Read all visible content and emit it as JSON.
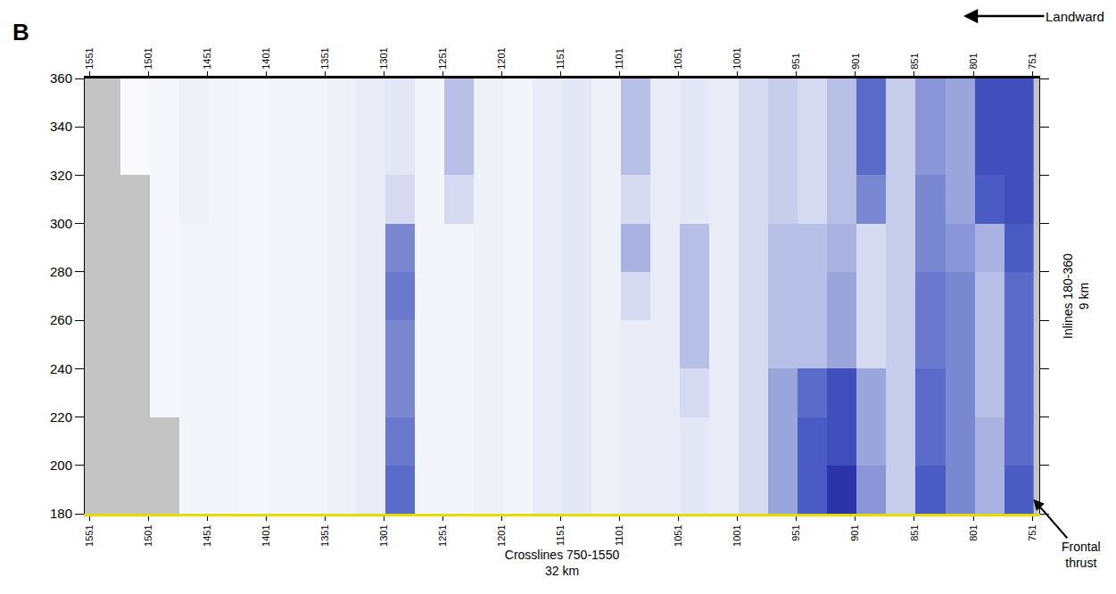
{
  "chart_data": {
    "type": "heatmap",
    "panel": "B",
    "x_label": [
      "Crosslines 750-1550",
      "32 km"
    ],
    "y_label": [
      "Inlines 180-360",
      "9 km"
    ],
    "x": [
      762.5,
      787.5,
      812.5,
      837.5,
      862.5,
      887.5,
      912.5,
      937.5,
      962.5,
      987.5,
      1012.5,
      1037.5,
      1062.5,
      1087.5,
      1112.5,
      1137.5,
      1162.5,
      1187.5,
      1212.5,
      1237.5,
      1262.5,
      1287.5,
      1312.5,
      1337.5,
      1362.5,
      1387.5,
      1412.5,
      1437.5,
      1462.5,
      1487.5,
      1512.5,
      1537.5
    ],
    "y": [
      190,
      210,
      230,
      250,
      270,
      290,
      310,
      330,
      350
    ],
    "cells": [
      [
        0.75,
        0.45,
        0.6,
        0.75,
        0.35,
        0.55,
        0.9,
        0.75,
        0.5,
        0.3,
        0.2,
        0.25,
        0.2,
        0.2,
        0.15,
        0.25,
        0.2,
        0.1,
        0.15,
        0.1,
        0.1,
        0.7,
        0.2,
        0.15,
        0.1,
        0.1,
        0.08,
        0.1,
        0.1,
        null,
        null,
        null
      ],
      [
        0.7,
        0.45,
        0.6,
        0.7,
        0.35,
        0.5,
        0.8,
        0.75,
        0.5,
        0.3,
        0.2,
        0.25,
        0.2,
        0.2,
        0.15,
        0.25,
        0.2,
        0.1,
        0.15,
        0.1,
        0.1,
        0.65,
        0.2,
        0.15,
        0.1,
        0.1,
        0.08,
        0.1,
        0.1,
        null,
        null,
        null
      ],
      [
        0.7,
        0.4,
        0.6,
        0.7,
        0.35,
        0.5,
        0.8,
        0.7,
        0.5,
        0.3,
        0.2,
        0.3,
        0.2,
        0.2,
        0.15,
        0.25,
        0.2,
        0.1,
        0.15,
        0.1,
        0.1,
        0.6,
        0.2,
        0.15,
        0.1,
        0.1,
        0.08,
        0.1,
        0.1,
        0.08,
        null,
        null
      ],
      [
        0.7,
        0.4,
        0.6,
        0.65,
        0.35,
        0.3,
        0.5,
        0.4,
        0.4,
        0.3,
        0.2,
        0.4,
        0.2,
        0.2,
        0.15,
        0.25,
        0.2,
        0.1,
        0.15,
        0.1,
        0.1,
        0.6,
        0.2,
        0.15,
        0.1,
        0.1,
        0.08,
        0.1,
        0.1,
        0.08,
        null,
        null
      ],
      [
        0.7,
        0.4,
        0.6,
        0.65,
        0.35,
        0.3,
        0.5,
        0.4,
        0.4,
        0.3,
        0.2,
        0.4,
        0.2,
        0.3,
        0.15,
        0.25,
        0.2,
        0.1,
        0.15,
        0.1,
        0.1,
        0.65,
        0.2,
        0.15,
        0.1,
        0.1,
        0.08,
        0.1,
        0.1,
        0.08,
        null,
        null
      ],
      [
        0.75,
        0.45,
        0.55,
        0.6,
        0.35,
        0.3,
        0.45,
        0.4,
        0.4,
        0.3,
        0.2,
        0.4,
        0.2,
        0.45,
        0.15,
        0.25,
        0.2,
        0.1,
        0.15,
        0.1,
        0.1,
        0.6,
        0.2,
        0.15,
        0.1,
        0.1,
        0.08,
        0.1,
        0.1,
        0.08,
        null,
        null
      ],
      [
        0.8,
        0.75,
        0.5,
        0.6,
        0.35,
        0.6,
        0.4,
        0.3,
        0.35,
        0.3,
        0.2,
        0.25,
        0.2,
        0.3,
        0.15,
        0.25,
        0.2,
        0.1,
        0.15,
        0.3,
        0.1,
        0.3,
        0.2,
        0.15,
        0.1,
        0.1,
        0.08,
        0.1,
        0.15,
        0.08,
        null,
        null
      ],
      [
        0.8,
        0.8,
        0.5,
        0.55,
        0.35,
        0.7,
        0.4,
        0.3,
        0.35,
        0.3,
        0.2,
        0.25,
        0.2,
        0.4,
        0.15,
        0.25,
        0.2,
        0.1,
        0.15,
        0.4,
        0.1,
        0.25,
        0.2,
        0.15,
        0.1,
        0.1,
        0.08,
        0.1,
        0.15,
        0.08,
        0.05,
        null
      ],
      [
        0.8,
        0.8,
        0.5,
        0.55,
        0.35,
        0.7,
        0.4,
        0.3,
        0.35,
        0.3,
        0.2,
        0.25,
        0.2,
        0.4,
        0.15,
        0.25,
        0.2,
        0.1,
        0.15,
        0.4,
        0.1,
        0.25,
        0.2,
        0.15,
        0.1,
        0.1,
        0.08,
        0.1,
        0.15,
        0.08,
        0.05,
        null
      ]
    ],
    "zlim": [
      0,
      1
    ],
    "xlim": [
      1555,
      745
    ],
    "ylim": [
      180,
      360
    ],
    "xticks": [
      1551,
      1501,
      1451,
      1401,
      1351,
      1301,
      1251,
      1201,
      1151,
      1101,
      1051,
      1001,
      951,
      901,
      851,
      801,
      751
    ],
    "yticks": [
      180,
      200,
      220,
      240,
      260,
      280,
      300,
      320,
      340,
      360
    ],
    "grid": false,
    "annotations": [
      {
        "text": "Landward"
      },
      {
        "text": "Frontal thrust",
        "x": 750,
        "y": 186
      }
    ]
  }
}
